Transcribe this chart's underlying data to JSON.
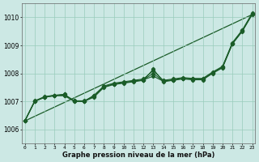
{
  "xlabel": "Graphe pression niveau de la mer (hPa)",
  "background_color": "#cce8e4",
  "grid_color": "#99ccbb",
  "line_color": "#1a5c28",
  "ylim": [
    1005.5,
    1010.5
  ],
  "xlim": [
    -0.3,
    23.3
  ],
  "yticks": [
    1006,
    1007,
    1008,
    1009,
    1010
  ],
  "xticks": [
    0,
    1,
    2,
    3,
    4,
    5,
    6,
    7,
    8,
    9,
    10,
    11,
    12,
    13,
    14,
    15,
    16,
    17,
    18,
    19,
    20,
    21,
    22,
    23
  ],
  "series_main": [
    1006.3,
    1007.0,
    1007.15,
    1007.2,
    1007.2,
    1007.0,
    1007.0,
    1007.15,
    1007.5,
    1007.6,
    1007.65,
    1007.7,
    1007.75,
    1008.15,
    1007.7,
    1007.75,
    1007.8,
    1007.77,
    1007.77,
    1008.0,
    1008.2,
    1009.05,
    1009.5,
    1010.1
  ],
  "series_a": [
    1006.3,
    1007.0,
    1007.15,
    1007.22,
    1007.25,
    1007.0,
    1007.0,
    1007.2,
    1007.52,
    1007.62,
    1007.67,
    1007.72,
    1007.77,
    1007.9,
    1007.72,
    1007.77,
    1007.82,
    1007.8,
    1007.8,
    1008.02,
    1008.22,
    1009.07,
    1009.52,
    1010.12
  ],
  "series_b": [
    1006.3,
    1007.02,
    1007.17,
    1007.22,
    1007.22,
    1007.02,
    1007.02,
    1007.17,
    1007.52,
    1007.62,
    1007.67,
    1007.72,
    1007.77,
    1008.0,
    1007.72,
    1007.77,
    1007.82,
    1007.79,
    1007.79,
    1008.02,
    1008.22,
    1009.07,
    1009.52,
    1010.12
  ],
  "series_c": [
    1006.3,
    1007.0,
    1007.15,
    1007.2,
    1007.25,
    1007.02,
    1007.0,
    1007.22,
    1007.55,
    1007.65,
    1007.7,
    1007.75,
    1007.8,
    1008.1,
    1007.75,
    1007.8,
    1007.85,
    1007.82,
    1007.82,
    1008.05,
    1008.25,
    1009.1,
    1009.55,
    1010.15
  ],
  "trend_line": [
    1006.3,
    1010.1
  ]
}
